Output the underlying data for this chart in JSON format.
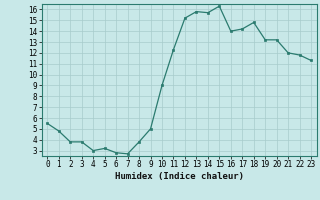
{
  "x": [
    0,
    1,
    2,
    3,
    4,
    5,
    6,
    7,
    8,
    9,
    10,
    11,
    12,
    13,
    14,
    15,
    16,
    17,
    18,
    19,
    20,
    21,
    22,
    23
  ],
  "y": [
    5.5,
    4.8,
    3.8,
    3.8,
    3.0,
    3.2,
    2.8,
    2.7,
    3.8,
    5.0,
    9.0,
    12.3,
    15.2,
    15.8,
    15.7,
    16.3,
    14.0,
    14.2,
    14.8,
    13.2,
    13.2,
    12.0,
    11.8,
    11.3
  ],
  "line_color": "#2b7b6f",
  "marker_color": "#2b7b6f",
  "bg_color": "#c8e8e8",
  "grid_color": "#a8cccc",
  "xlabel": "Humidex (Indice chaleur)",
  "xlim": [
    -0.5,
    23.5
  ],
  "ylim": [
    2.5,
    16.5
  ],
  "yticks": [
    3,
    4,
    5,
    6,
    7,
    8,
    9,
    10,
    11,
    12,
    13,
    14,
    15,
    16
  ],
  "xticks": [
    0,
    1,
    2,
    3,
    4,
    5,
    6,
    7,
    8,
    9,
    10,
    11,
    12,
    13,
    14,
    15,
    16,
    17,
    18,
    19,
    20,
    21,
    22,
    23
  ],
  "tick_fontsize": 5.5,
  "label_fontsize": 6.5
}
